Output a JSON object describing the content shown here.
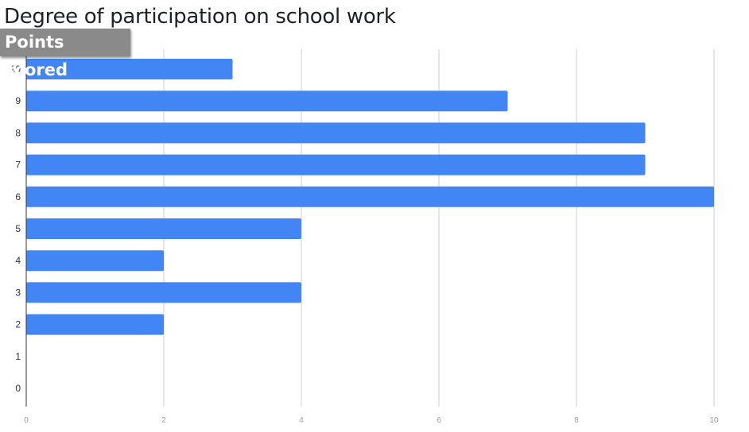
{
  "chart_data": {
    "type": "bar",
    "orientation": "horizontal",
    "title": "Degree of participation on school work",
    "ylabel": "Points scored",
    "xlabel": "",
    "categories": [
      "10",
      "9",
      "8",
      "7",
      "6",
      "5",
      "4",
      "3",
      "2",
      "1",
      "0"
    ],
    "values": [
      3,
      7,
      9,
      9,
      10,
      4,
      2,
      4,
      2,
      0,
      0
    ],
    "xlim": [
      0,
      10
    ],
    "x_ticks": [
      "0",
      "2",
      "4",
      "6",
      "8",
      "10"
    ],
    "grid": true,
    "bar_color": "#4285f4",
    "grid_color": "#cccccc"
  }
}
